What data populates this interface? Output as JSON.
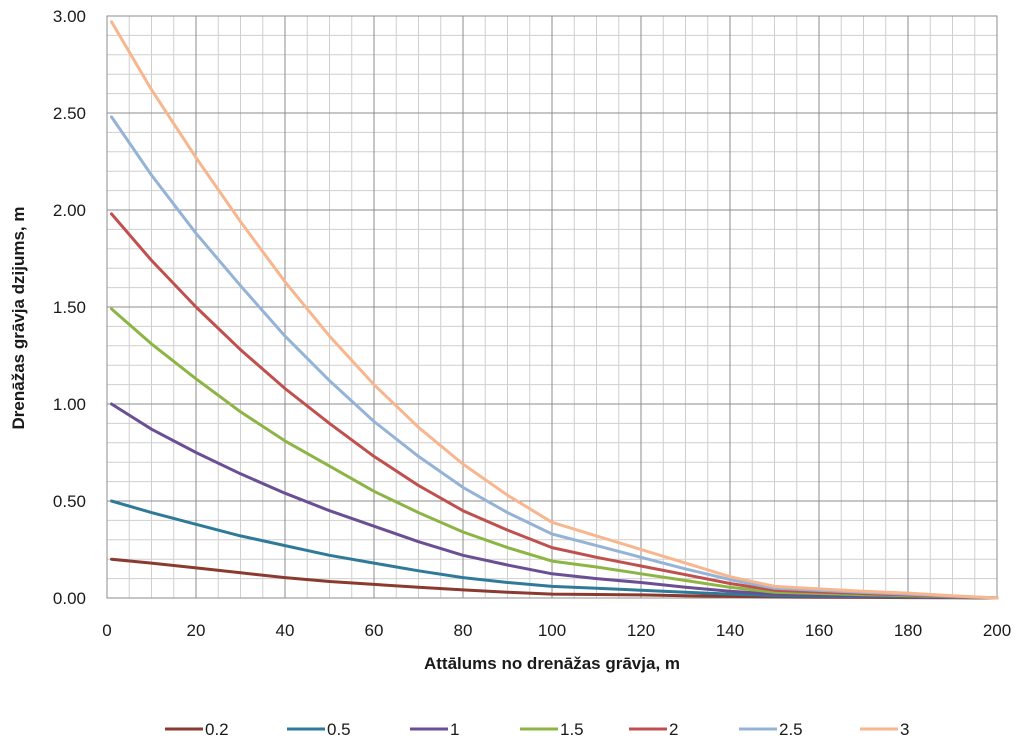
{
  "chart_data": {
    "type": "line",
    "title": "",
    "xlabel": "Attālums no drenāžas grāvja, m",
    "ylabel": "Drenāžas grāvja dzijums, m",
    "xlim": [
      0,
      200
    ],
    "ylim": [
      0,
      3
    ],
    "x_major_ticks": [
      0,
      20,
      40,
      60,
      80,
      100,
      120,
      140,
      160,
      180,
      200
    ],
    "x_tick_labels": [
      "0",
      "20",
      "40",
      "60",
      "80",
      "100",
      "120",
      "140",
      "160",
      "180",
      "200"
    ],
    "y_major_ticks": [
      0,
      0.5,
      1,
      1.5,
      2,
      2.5,
      3
    ],
    "y_tick_labels": [
      "0.00",
      "0.50",
      "1.00",
      "1.50",
      "2.00",
      "2.50",
      "3.00"
    ],
    "grid": "major-and-minor",
    "legend_position": "bottom",
    "x": [
      1,
      10,
      20,
      30,
      40,
      50,
      60,
      70,
      80,
      90,
      100,
      110,
      120,
      130,
      140,
      150,
      160,
      170,
      180,
      190,
      200
    ],
    "series": [
      {
        "name": "0.2",
        "color": "#8b3a2f",
        "values": [
          0.2,
          0.18,
          0.155,
          0.13,
          0.105,
          0.085,
          0.07,
          0.055,
          0.042,
          0.03,
          0.02,
          0.018,
          0.016,
          0.012,
          0.008,
          0.005,
          0.004,
          0.003,
          0.002,
          0.001,
          0
        ]
      },
      {
        "name": "0.5",
        "color": "#2f7a99",
        "values": [
          0.5,
          0.44,
          0.38,
          0.32,
          0.27,
          0.22,
          0.18,
          0.14,
          0.105,
          0.08,
          0.06,
          0.05,
          0.04,
          0.03,
          0.02,
          0.012,
          0.009,
          0.007,
          0.005,
          0.003,
          0
        ]
      },
      {
        "name": "1",
        "color": "#6a4f94",
        "values": [
          1.0,
          0.87,
          0.75,
          0.64,
          0.54,
          0.45,
          0.37,
          0.29,
          0.22,
          0.17,
          0.125,
          0.1,
          0.08,
          0.055,
          0.035,
          0.02,
          0.015,
          0.011,
          0.008,
          0.004,
          0
        ]
      },
      {
        "name": "1.5",
        "color": "#8db545",
        "values": [
          1.49,
          1.31,
          1.13,
          0.96,
          0.81,
          0.68,
          0.55,
          0.44,
          0.34,
          0.26,
          0.19,
          0.16,
          0.125,
          0.09,
          0.055,
          0.03,
          0.023,
          0.017,
          0.012,
          0.006,
          0
        ]
      },
      {
        "name": "2",
        "color": "#c0504d",
        "values": [
          1.98,
          1.74,
          1.5,
          1.28,
          1.08,
          0.9,
          0.73,
          0.58,
          0.45,
          0.35,
          0.26,
          0.21,
          0.165,
          0.12,
          0.075,
          0.04,
          0.031,
          0.023,
          0.016,
          0.008,
          0
        ]
      },
      {
        "name": "2.5",
        "color": "#95b3d7",
        "values": [
          2.48,
          2.18,
          1.88,
          1.61,
          1.35,
          1.12,
          0.91,
          0.73,
          0.57,
          0.44,
          0.33,
          0.27,
          0.21,
          0.15,
          0.095,
          0.05,
          0.039,
          0.029,
          0.02,
          0.01,
          0
        ]
      },
      {
        "name": "3",
        "color": "#f8b68f",
        "values": [
          2.97,
          2.62,
          2.27,
          1.94,
          1.63,
          1.35,
          1.1,
          0.88,
          0.69,
          0.53,
          0.39,
          0.32,
          0.25,
          0.18,
          0.11,
          0.06,
          0.047,
          0.035,
          0.025,
          0.012,
          0
        ]
      }
    ]
  }
}
